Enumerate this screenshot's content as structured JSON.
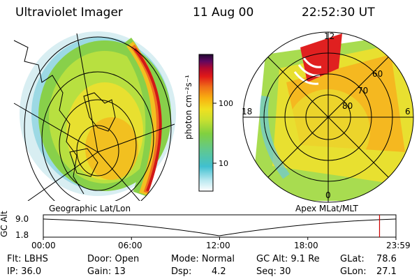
{
  "header": {
    "instrument": "Ultraviolet Imager",
    "date": "11 Aug 00",
    "time": "22:52:30 UT"
  },
  "colorbar": {
    "unit_label": "photon cm⁻²s⁻¹",
    "tick_labels": [
      "100",
      "10"
    ]
  },
  "panels": {
    "left_label": "Geographic Lat/Lon",
    "right_label": "Apex MLat/MLT"
  },
  "polar_grid": {
    "lat_labels": [
      "60",
      "70",
      "80"
    ],
    "mlt_labels": {
      "top": "12",
      "left": "18",
      "right": "6",
      "bottom": "0"
    }
  },
  "orbit": {
    "axis_label": "GC Alt",
    "y_ticks": [
      "9.0",
      "1.8"
    ],
    "time_ticks": [
      "00:00",
      "06:00",
      "12:00",
      "18:00",
      "23:59"
    ],
    "current_marker_time": "22:52",
    "colors": {
      "marker": "#cc0000"
    }
  },
  "params": {
    "row1": {
      "filter": "Flt: LBHS",
      "door": "Door: Open",
      "mode": "Mode: Normal",
      "gc_alt": "GC Alt: 9.1 Re",
      "glat_label": "GLat:",
      "glat_value": "78.6"
    },
    "row2": {
      "ip": "IP: 36.0",
      "gain": "Gain: 13",
      "dsp_label": "Dsp:",
      "dsp_value": "4.2",
      "seq": "Seq: 30",
      "glon_label": "GLon:",
      "glon_value": "27.1"
    }
  }
}
